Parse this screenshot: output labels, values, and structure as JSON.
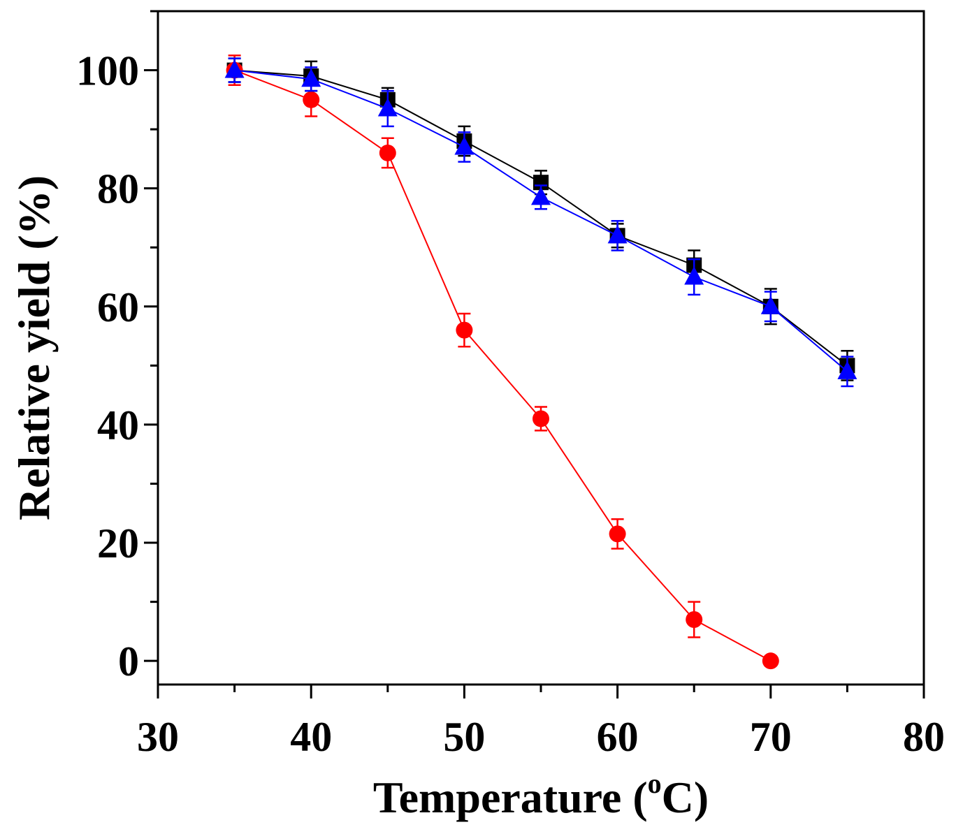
{
  "chart_data": {
    "type": "line",
    "title": "",
    "xlabel": "Temperature (",
    "xlabel_sup": "o",
    "xlabel_end": "C)",
    "ylabel": "Relative yield (%)",
    "xlim": [
      30,
      80
    ],
    "ylim": [
      -4,
      110
    ],
    "xticks": [
      30,
      40,
      50,
      60,
      70,
      80
    ],
    "yticks": [
      0,
      20,
      40,
      60,
      80,
      100
    ],
    "grid": false,
    "legend": "none",
    "series": [
      {
        "name": "squares",
        "marker": "square",
        "color": "#000000",
        "x": [
          35,
          40,
          45,
          50,
          55,
          60,
          65,
          70,
          75
        ],
        "y": [
          100,
          99,
          95,
          88,
          81,
          72,
          67,
          60,
          50
        ],
        "err": [
          2,
          2.5,
          2,
          2.5,
          2,
          2,
          2.5,
          3,
          2.5
        ]
      },
      {
        "name": "circles",
        "marker": "circle",
        "color": "#ff0000",
        "x": [
          35,
          40,
          45,
          50,
          55,
          60,
          65,
          70
        ],
        "y": [
          100,
          95,
          86,
          56,
          41,
          21.5,
          7,
          0
        ],
        "err": [
          2.5,
          2.8,
          2.5,
          2.8,
          2,
          2.5,
          3,
          0
        ]
      },
      {
        "name": "triangles",
        "marker": "triangle",
        "color": "#0000ff",
        "x": [
          35,
          40,
          45,
          50,
          55,
          60,
          65,
          70,
          75
        ],
        "y": [
          100,
          98.5,
          93.5,
          87,
          78.5,
          72,
          65,
          60,
          49
        ],
        "err": [
          2,
          2,
          3,
          2.5,
          2,
          2.5,
          3,
          2.5,
          2.5
        ]
      }
    ]
  }
}
